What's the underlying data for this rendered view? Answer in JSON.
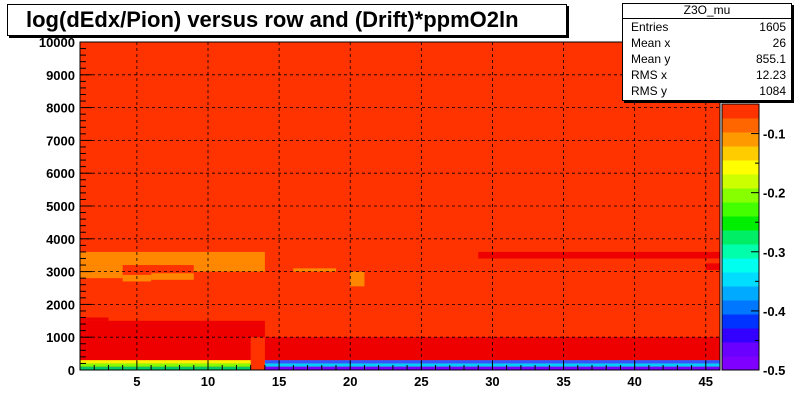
{
  "chart_data": {
    "type": "heatmap",
    "title": "log(dEdx/Pion) versus row and (Drift)*ppmO2ln",
    "xlim": [
      1,
      46
    ],
    "ylim": [
      0,
      10000
    ],
    "x_ticks": [
      5,
      10,
      15,
      20,
      25,
      30,
      35,
      40,
      45
    ],
    "y_ticks": [
      0,
      1000,
      2000,
      3000,
      4000,
      5000,
      6000,
      7000,
      8000,
      9000,
      10000
    ],
    "z_ticks": [
      -0.1,
      -0.2,
      -0.3,
      -0.4,
      -0.5
    ],
    "zlim": [
      -0.5,
      -0.05
    ],
    "grid": true,
    "background_cell_color": "#ff3300",
    "cells": [
      {
        "x0": 1,
        "x1": 13.5,
        "y0": 3600,
        "y1": 10000,
        "color": "#ff3300"
      },
      {
        "x0": 1,
        "x1": 14,
        "y0": 3200,
        "y1": 3600,
        "color": "#ff8800"
      },
      {
        "x0": 1,
        "x1": 4,
        "y0": 2800,
        "y1": 3200,
        "color": "#ff8800"
      },
      {
        "x0": 4,
        "x1": 6,
        "y0": 2700,
        "y1": 2900,
        "color": "#ff8800"
      },
      {
        "x0": 6,
        "x1": 9,
        "y0": 2750,
        "y1": 2950,
        "color": "#ff8800"
      },
      {
        "x0": 9,
        "x1": 14,
        "y0": 3000,
        "y1": 3200,
        "color": "#ff8800"
      },
      {
        "x0": 16,
        "x1": 19,
        "y0": 3000,
        "y1": 3100,
        "color": "#ff8800"
      },
      {
        "x0": 20,
        "x1": 21,
        "y0": 2550,
        "y1": 3000,
        "color": "#ff8800"
      },
      {
        "x0": 1,
        "x1": 14,
        "y0": 1000,
        "y1": 1500,
        "color": "#ee0000"
      },
      {
        "x0": 1,
        "x1": 3,
        "y0": 1500,
        "y1": 1600,
        "color": "#ee0000"
      },
      {
        "x0": 1,
        "x1": 14,
        "y0": 300,
        "y1": 1000,
        "color": "#ee0000"
      },
      {
        "x0": 14,
        "x1": 46,
        "y0": 300,
        "y1": 1000,
        "color": "#ee0000"
      },
      {
        "x0": 29,
        "x1": 46,
        "y0": 3400,
        "y1": 3600,
        "color": "#ee0000"
      },
      {
        "x0": 45,
        "x1": 46,
        "y0": 3050,
        "y1": 3250,
        "color": "#ee0000"
      },
      {
        "x0": 1,
        "x1": 14,
        "y0": 200,
        "y1": 300,
        "color": "#ffee00"
      },
      {
        "x0": 1,
        "x1": 14,
        "y0": 100,
        "y1": 200,
        "color": "#88ff00"
      },
      {
        "x0": 1,
        "x1": 14,
        "y0": 0,
        "y1": 100,
        "color": "#00cc66"
      },
      {
        "x0": 13,
        "x1": 14,
        "y0": 0,
        "y1": 1000,
        "color": "#ff3300"
      },
      {
        "x0": 14,
        "x1": 46,
        "y0": 200,
        "y1": 300,
        "color": "#3355ff"
      },
      {
        "x0": 14,
        "x1": 46,
        "y0": 100,
        "y1": 200,
        "color": "#00ccff"
      },
      {
        "x0": 14,
        "x1": 46,
        "y0": 0,
        "y1": 100,
        "color": "#7700ff"
      }
    ]
  },
  "palette": [
    "#7f00ff",
    "#6a00ff",
    "#3300ff",
    "#0033ff",
    "#0077ff",
    "#00aaff",
    "#00ddff",
    "#00ffee",
    "#00ffaa",
    "#00ee66",
    "#00ee00",
    "#44ff00",
    "#88ff00",
    "#ccff00",
    "#ffff00",
    "#ffcc00",
    "#ff9900",
    "#ff6600",
    "#ff3300"
  ],
  "stats": {
    "title": "Z3O_mu",
    "rows": [
      {
        "label": "Entries",
        "value": "1605"
      },
      {
        "label": "Mean x",
        "value": "26"
      },
      {
        "label": "Mean y",
        "value": "855.1"
      },
      {
        "label": "RMS x",
        "value": "12.23"
      },
      {
        "label": "RMS y",
        "value": "1084"
      }
    ]
  }
}
